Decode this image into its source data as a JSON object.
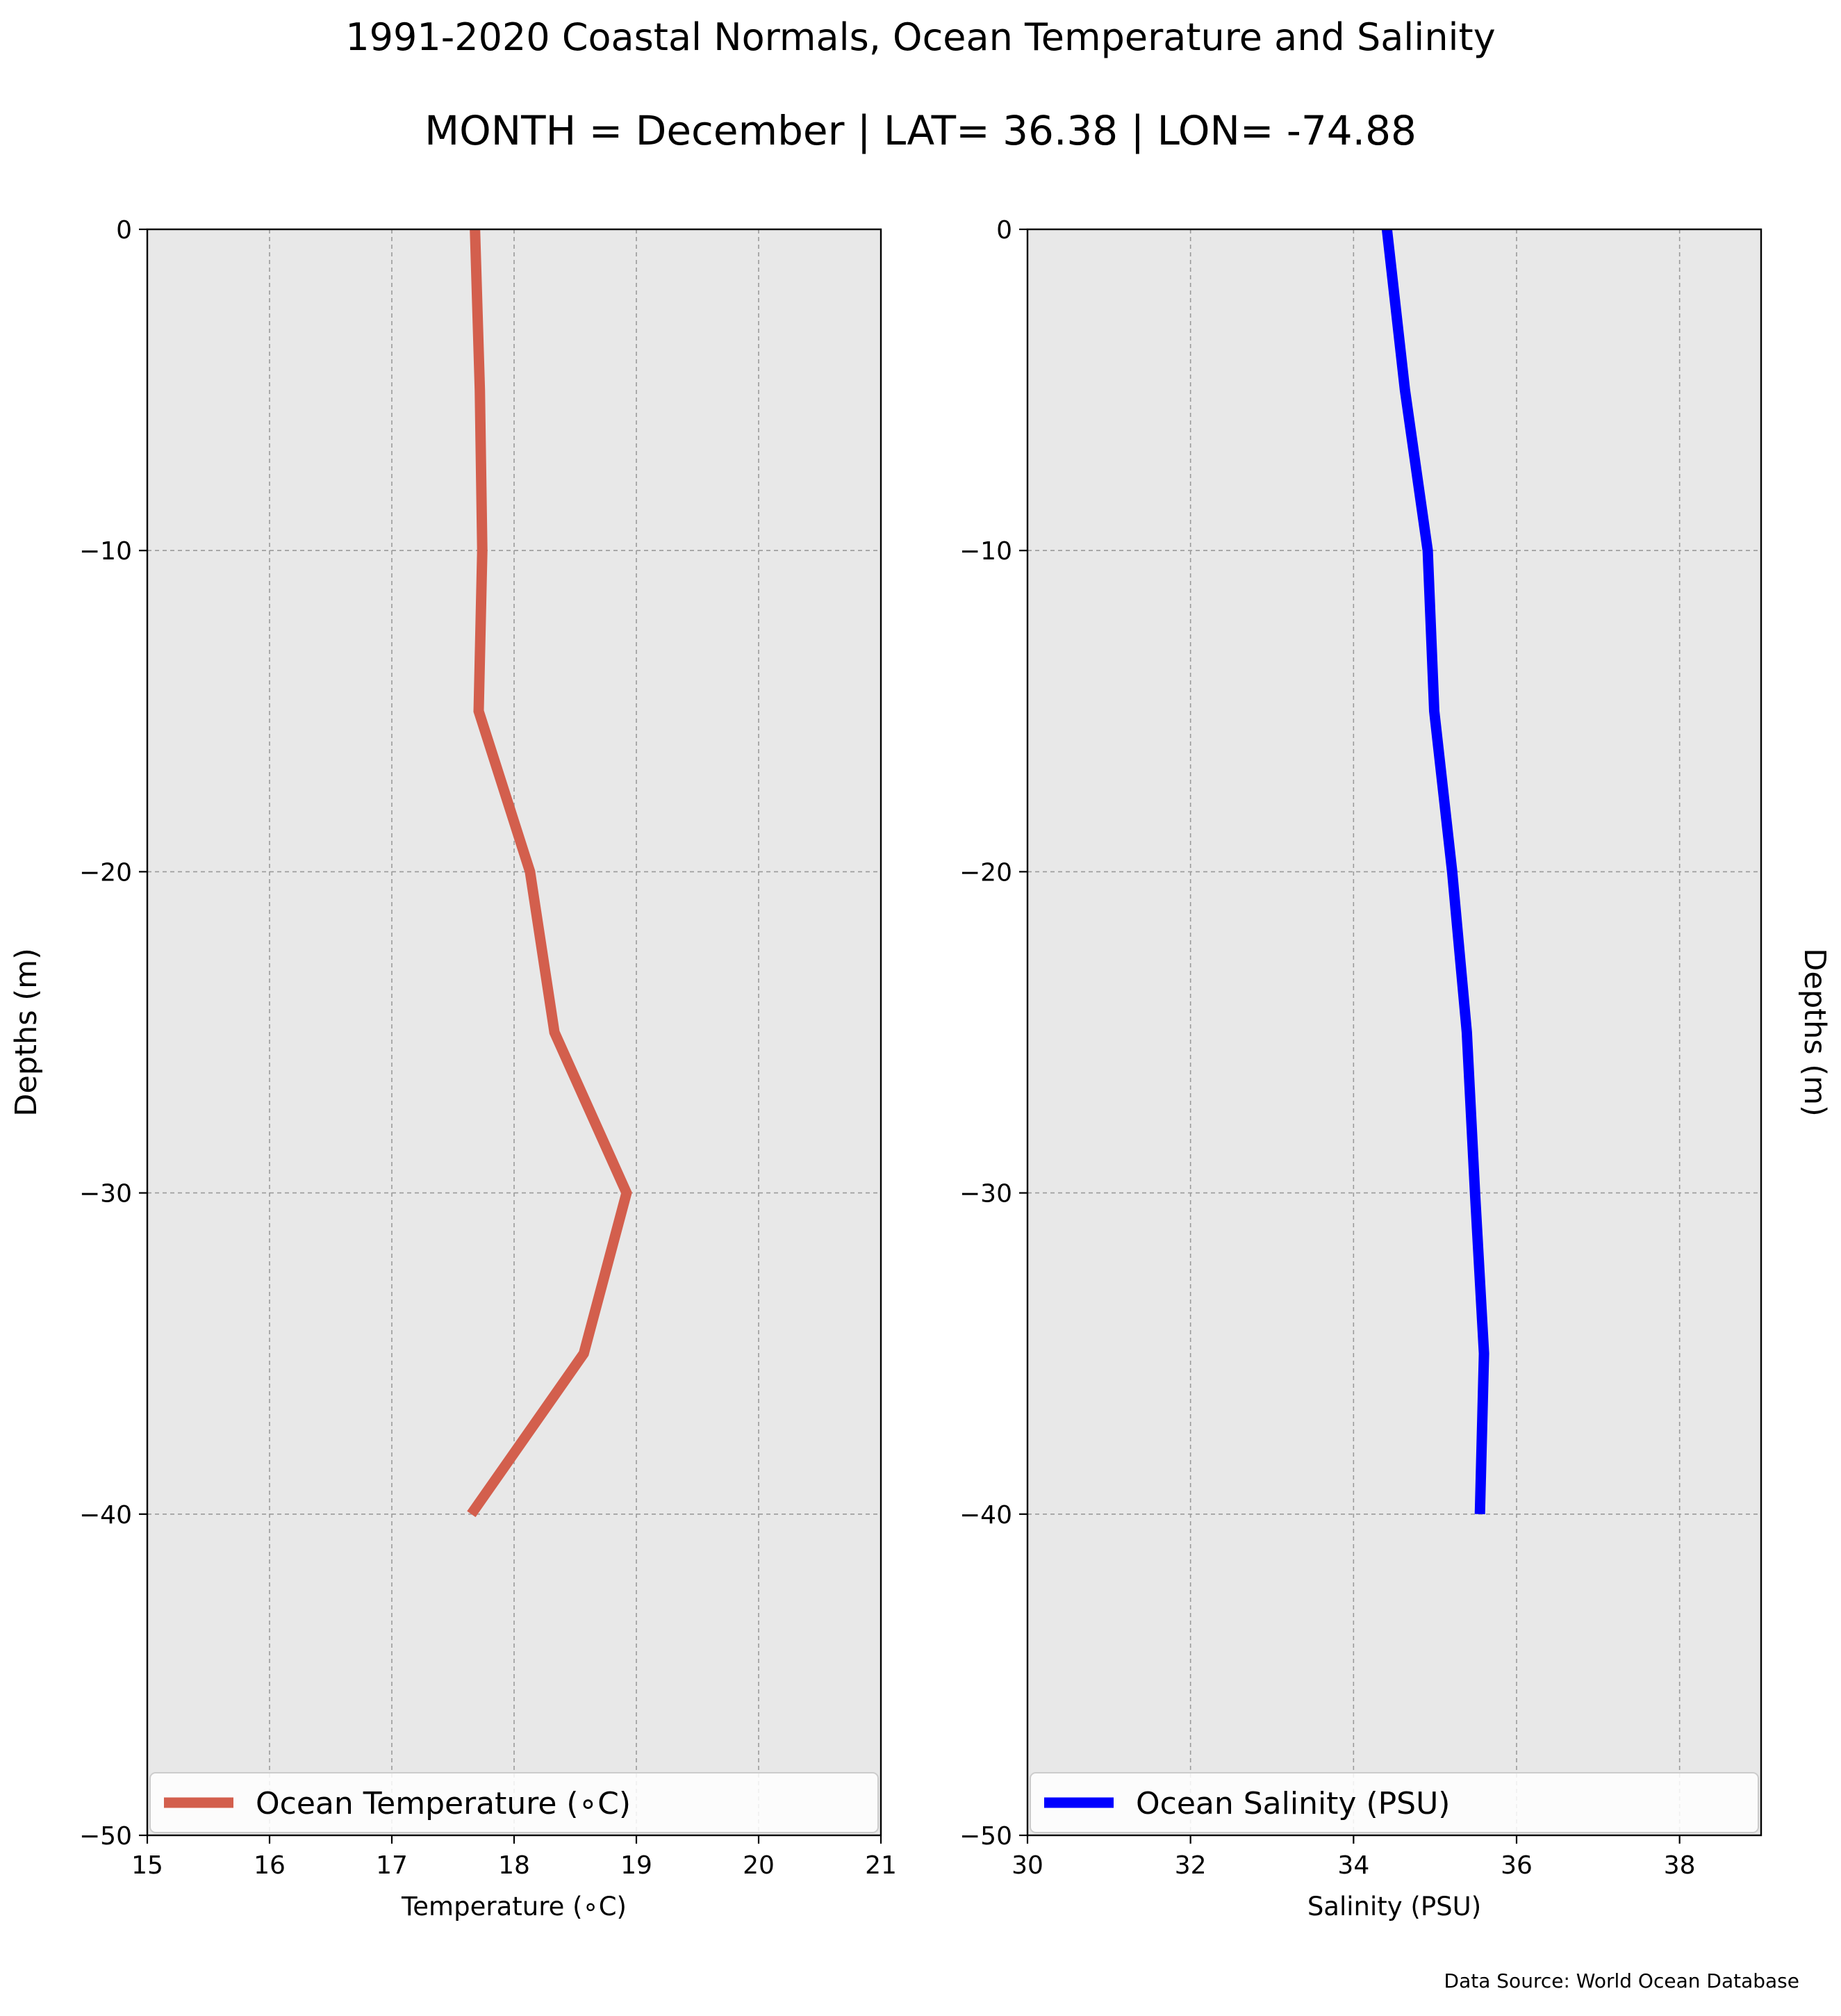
{
  "figure": {
    "title": "1991-2020 Coastal Normals, Ocean Temperature and Salinity",
    "subtitle": "MONTH = December | LAT= 36.38 | LON= -74.88",
    "source": "Data Source: World Ocean Database"
  },
  "chart_data": [
    {
      "type": "line",
      "xlabel": "Temperature (∘C)",
      "ylabel": "Depths (m)",
      "xlim": [
        15,
        21
      ],
      "ylim": [
        -50,
        0
      ],
      "xticks": [
        15,
        16,
        17,
        18,
        19,
        20,
        21
      ],
      "yticks": [
        0,
        -10,
        -20,
        -30,
        -40,
        -50
      ],
      "grid": true,
      "legend_position": "bottom",
      "series": [
        {
          "name": "Ocean Temperature (∘C)",
          "color": "#d35f4d",
          "x": [
            17.68,
            17.72,
            17.74,
            17.71,
            18.13,
            18.33,
            18.92,
            18.57,
            17.65
          ],
          "y": [
            0,
            -5,
            -10,
            -15,
            -20,
            -25,
            -30,
            -35,
            -40
          ]
        }
      ]
    },
    {
      "type": "line",
      "xlabel": "Salinity (PSU)",
      "ylabel": "Depths (m)",
      "xlim": [
        30,
        39
      ],
      "ylim": [
        -50,
        0
      ],
      "xticks": [
        30,
        32,
        34,
        36,
        38
      ],
      "yticks": [
        0,
        -10,
        -20,
        -30,
        -40,
        -50
      ],
      "grid": true,
      "legend_position": "bottom",
      "series": [
        {
          "name": "Ocean Salinity (PSU)",
          "color": "#0000ff",
          "x": [
            34.41,
            34.63,
            34.91,
            34.99,
            35.21,
            35.39,
            35.49,
            35.6,
            35.55
          ],
          "y": [
            0,
            -5,
            -10,
            -15,
            -20,
            -25,
            -30,
            -35,
            -40
          ]
        }
      ]
    }
  ]
}
